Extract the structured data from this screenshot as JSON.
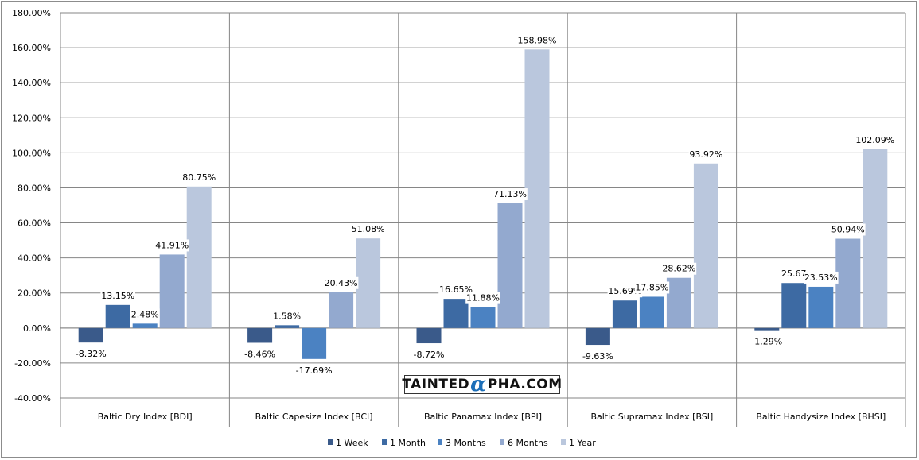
{
  "watermark": {
    "pre": "TAINTED",
    "alpha": "α",
    "post": "PHA.COM"
  },
  "chart_data": {
    "type": "bar",
    "categories": [
      "Baltic Dry Index [BDI]",
      "Baltic Capesize Index [BCI]",
      "Baltic Panamax Index [BPI]",
      "Baltic Supramax Index [BSI]",
      "Baltic Handysize Index [BHSI]"
    ],
    "series": [
      {
        "name": "1 Week",
        "color": "#3a5a8a",
        "values": [
          -8.32,
          -8.46,
          -8.72,
          -9.63,
          -1.29
        ],
        "labels": [
          "-8.32%",
          "-8.46%",
          "-8.72%",
          "-9.63%",
          "-1.29%"
        ]
      },
      {
        "name": "1 Month",
        "color": "#3d6aa3",
        "values": [
          13.15,
          1.58,
          16.65,
          15.69,
          25.67
        ],
        "labels": [
          "13.15%",
          "1.58%",
          "16.65%",
          "15.69%",
          "25.67"
        ]
      },
      {
        "name": "3 Months",
        "color": "#4b82c2",
        "values": [
          2.48,
          -17.69,
          11.88,
          17.85,
          23.53
        ],
        "labels": [
          "2.48%",
          "-17.69%",
          "11.88%",
          "17.85%",
          "23.53%"
        ]
      },
      {
        "name": "6 Months",
        "color": "#93a9cf",
        "values": [
          41.91,
          20.43,
          71.13,
          28.62,
          50.94
        ],
        "labels": [
          "41.91%",
          "20.43%",
          "71.13%",
          "28.62%",
          "50.94%"
        ]
      },
      {
        "name": "1 Year",
        "color": "#bac7dd",
        "values": [
          80.75,
          51.08,
          158.98,
          93.92,
          102.09
        ],
        "labels": [
          "80.75%",
          "51.08%",
          "158.98%",
          "93.92%",
          "102.09%"
        ]
      }
    ],
    "y_ticks": [
      "-40.00%",
      "-20.00%",
      "0.00%",
      "20.00%",
      "40.00%",
      "60.00%",
      "80.00%",
      "100.00%",
      "120.00%",
      "140.00%",
      "160.00%",
      "180.00%"
    ],
    "ylim": [
      -40,
      180
    ],
    "grid": true,
    "legend": "bottom"
  }
}
